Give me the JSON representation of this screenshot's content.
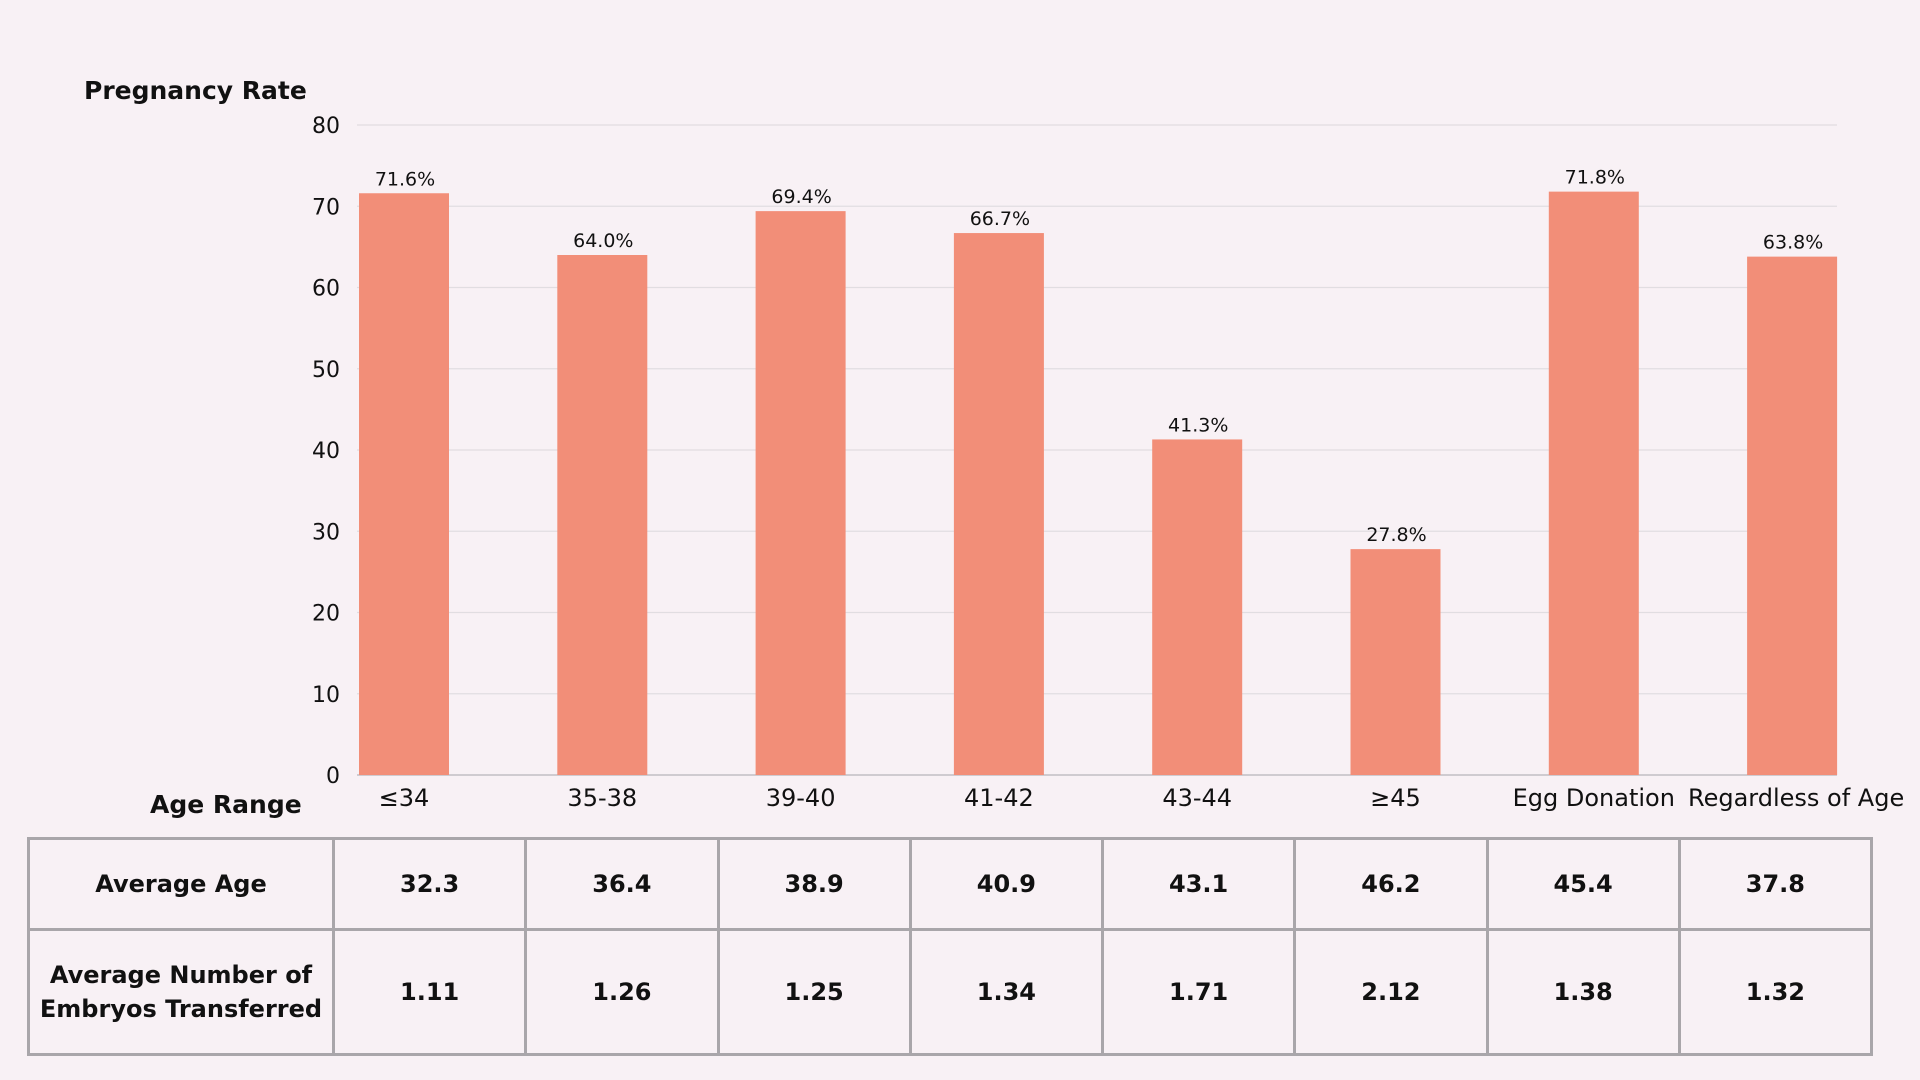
{
  "chart_data": {
    "type": "bar",
    "ylabel": "Pregnancy Rate",
    "xlabel": "Age Range",
    "ylim": [
      0,
      80
    ],
    "yticks": [
      0,
      10,
      20,
      30,
      40,
      50,
      60,
      70,
      80
    ],
    "grid": true,
    "bar_color": "#f28e78",
    "categories": [
      "≤34",
      "35-38",
      "39-40",
      "41-42",
      "43-44",
      "≥45",
      "Egg Donation",
      "Regardless of Age"
    ],
    "values": [
      71.6,
      64.0,
      69.4,
      66.7,
      41.3,
      27.8,
      71.8,
      63.8
    ],
    "value_labels": [
      "71.6%",
      "64.0%",
      "69.4%",
      "66.7%",
      "41.3%",
      "27.8%",
      "71.8%",
      "63.8%"
    ]
  },
  "table": {
    "rows": [
      {
        "label": "Average Age",
        "values": [
          "32.3",
          "36.4",
          "38.9",
          "40.9",
          "43.1",
          "46.2",
          "45.4",
          "37.8"
        ]
      },
      {
        "label_line1": "Average Number of",
        "label_line2": "Embryos Transferred",
        "values": [
          "1.11",
          "1.26",
          "1.25",
          "1.34",
          "1.71",
          "2.12",
          "1.38",
          "1.32"
        ]
      }
    ]
  }
}
